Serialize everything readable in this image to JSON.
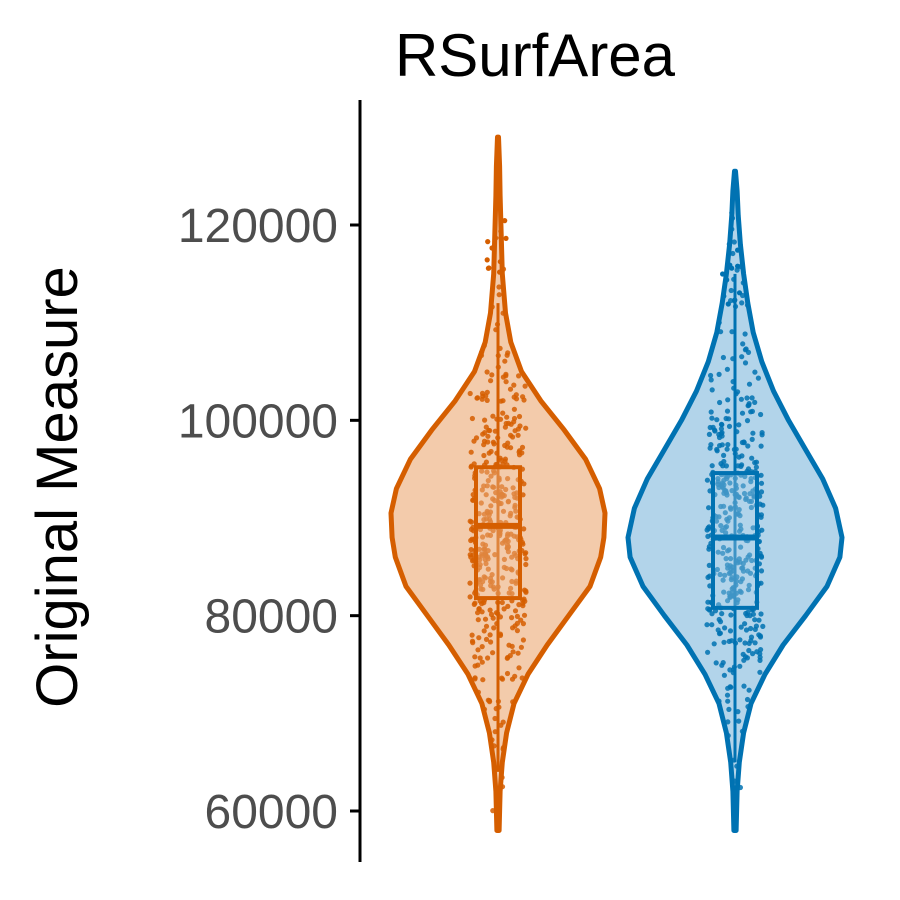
{
  "chart_data": {
    "type": "violin",
    "title": "RSurfArea",
    "xlabel": "",
    "ylabel": "Original Measure",
    "ylim": [
      58000,
      130000
    ],
    "y_ticks": [
      "60000",
      "80000",
      "100000",
      "120000"
    ],
    "grid": false,
    "legend": "none",
    "groups": [
      {
        "color": "#d55e00",
        "fill": "#f3cbab",
        "min": 58000,
        "max": 129000,
        "q1": 81800,
        "median": 89200,
        "q3": 95200,
        "whisker_low": 64000,
        "whisker_high": 112000,
        "density": [
          [
            58000,
            0.01
          ],
          [
            62000,
            0.02
          ],
          [
            65000,
            0.04
          ],
          [
            68000,
            0.08
          ],
          [
            71000,
            0.15
          ],
          [
            74000,
            0.28
          ],
          [
            77000,
            0.46
          ],
          [
            80000,
            0.66
          ],
          [
            83000,
            0.86
          ],
          [
            86000,
            0.96
          ],
          [
            88000,
            0.99
          ],
          [
            90500,
            1.0
          ],
          [
            93000,
            0.95
          ],
          [
            96000,
            0.82
          ],
          [
            99000,
            0.62
          ],
          [
            102000,
            0.4
          ],
          [
            105000,
            0.22
          ],
          [
            108000,
            0.12
          ],
          [
            111000,
            0.07
          ],
          [
            115000,
            0.04
          ],
          [
            119000,
            0.03
          ],
          [
            123000,
            0.02
          ],
          [
            126000,
            0.015
          ],
          [
            129000,
            0.005
          ]
        ]
      },
      {
        "color": "#0072b2",
        "fill": "#b2d4ea",
        "min": 58000,
        "max": 125500,
        "q1": 80800,
        "median": 88000,
        "q3": 94600,
        "whisker_low": 65000,
        "whisker_high": 115000,
        "density": [
          [
            58000,
            0.01
          ],
          [
            62000,
            0.02
          ],
          [
            65000,
            0.04
          ],
          [
            68000,
            0.08
          ],
          [
            71000,
            0.15
          ],
          [
            74000,
            0.28
          ],
          [
            77000,
            0.45
          ],
          [
            80000,
            0.66
          ],
          [
            83000,
            0.86
          ],
          [
            86000,
            0.98
          ],
          [
            88000,
            1.0
          ],
          [
            91000,
            0.94
          ],
          [
            94000,
            0.82
          ],
          [
            97000,
            0.66
          ],
          [
            100000,
            0.5
          ],
          [
            103000,
            0.36
          ],
          [
            106000,
            0.25
          ],
          [
            109000,
            0.17
          ],
          [
            112000,
            0.12
          ],
          [
            115000,
            0.08
          ],
          [
            118000,
            0.05
          ],
          [
            121000,
            0.03
          ],
          [
            123500,
            0.02
          ],
          [
            125500,
            0.005
          ]
        ]
      }
    ]
  }
}
